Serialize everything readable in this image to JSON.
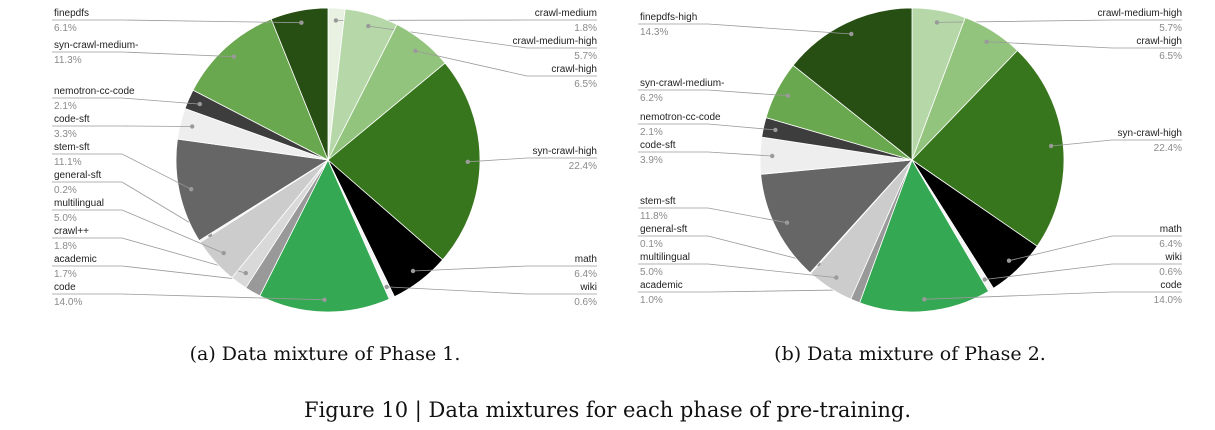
{
  "captions": {
    "a": "(a) Data mixture of Phase 1.",
    "b": "(b) Data mixture of Phase 2.",
    "figure": "Figure 10 | Data mixtures for each phase of pre-training."
  },
  "chart_data": [
    {
      "type": "pie",
      "title": "",
      "slices": [
        {
          "label": "crawl-medium",
          "pct": "1.8%",
          "value": 1.8,
          "color": "#e8f1e2"
        },
        {
          "label": "crawl-medium-high",
          "pct": "5.7%",
          "value": 5.7,
          "color": "#b6d7a8"
        },
        {
          "label": "crawl-high",
          "pct": "6.5%",
          "value": 6.5,
          "color": "#93c47d"
        },
        {
          "label": "syn-crawl-high",
          "pct": "22.4%",
          "value": 22.4,
          "color": "#38761d"
        },
        {
          "label": "math",
          "pct": "6.4%",
          "value": 6.4,
          "color": "#000000"
        },
        {
          "label": "wiki",
          "pct": "0.6%",
          "value": 0.6,
          "color": "#f6f6f6"
        },
        {
          "label": "code",
          "pct": "14.0%",
          "value": 14.0,
          "color": "#34a853"
        },
        {
          "label": "academic",
          "pct": "1.7%",
          "value": 1.7,
          "color": "#999999"
        },
        {
          "label": "crawl++",
          "pct": "1.8%",
          "value": 1.8,
          "color": "#d9d9d9"
        },
        {
          "label": "multilingual",
          "pct": "5.0%",
          "value": 5.0,
          "color": "#cccccc"
        },
        {
          "label": "general-sft",
          "pct": "0.2%",
          "value": 0.2,
          "color": "#efefef"
        },
        {
          "label": "stem-sft",
          "pct": "11.1%",
          "value": 11.1,
          "color": "#666666"
        },
        {
          "label": "code-sft",
          "pct": "3.3%",
          "value": 3.3,
          "color": "#eeeeee"
        },
        {
          "label": "nemotron-cc-code",
          "pct": "2.1%",
          "value": 2.1,
          "color": "#3d3d3d"
        },
        {
          "label": "syn-crawl-medium-",
          "pct": "11.3%",
          "value": 11.3,
          "color": "#6aa84f"
        },
        {
          "label": "finepdfs",
          "pct": "6.1%",
          "value": 6.1,
          "color": "#274e13"
        }
      ]
    },
    {
      "type": "pie",
      "title": "",
      "slices": [
        {
          "label": "crawl-medium-high",
          "pct": "5.7%",
          "value": 5.7,
          "color": "#b6d7a8"
        },
        {
          "label": "crawl-high",
          "pct": "6.5%",
          "value": 6.5,
          "color": "#93c47d"
        },
        {
          "label": "syn-crawl-high",
          "pct": "22.4%",
          "value": 22.4,
          "color": "#38761d"
        },
        {
          "label": "math",
          "pct": "6.4%",
          "value": 6.4,
          "color": "#000000"
        },
        {
          "label": "wiki",
          "pct": "0.6%",
          "value": 0.6,
          "color": "#f6f6f6"
        },
        {
          "label": "code",
          "pct": "14.0%",
          "value": 14.0,
          "color": "#34a853"
        },
        {
          "label": "academic",
          "pct": "1.0%",
          "value": 1.0,
          "color": "#999999"
        },
        {
          "label": "multilingual",
          "pct": "5.0%",
          "value": 5.0,
          "color": "#cccccc"
        },
        {
          "label": "general-sft",
          "pct": "0.1%",
          "value": 0.1,
          "color": "#efefef"
        },
        {
          "label": "stem-sft",
          "pct": "11.8%",
          "value": 11.8,
          "color": "#666666"
        },
        {
          "label": "code-sft",
          "pct": "3.9%",
          "value": 3.9,
          "color": "#eeeeee"
        },
        {
          "label": "nemotron-cc-code",
          "pct": "2.1%",
          "value": 2.1,
          "color": "#3d3d3d"
        },
        {
          "label": "syn-crawl-medium-",
          "pct": "6.2%",
          "value": 6.2,
          "color": "#6aa84f"
        },
        {
          "label": "finepdfs-high",
          "pct": "14.3%",
          "value": 14.3,
          "color": "#274e13"
        }
      ]
    }
  ]
}
